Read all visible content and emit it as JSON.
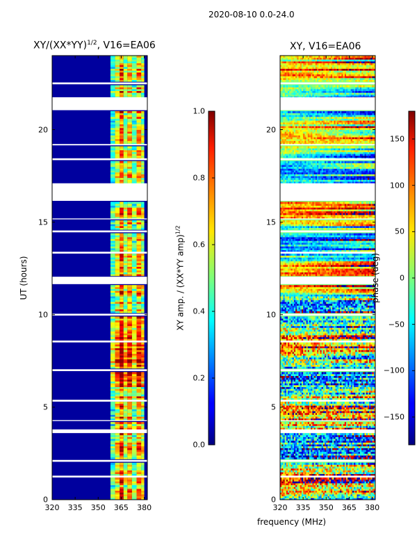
{
  "chart_data": {
    "type": "heatmap",
    "suptitle": "2020-08-10 0.0-24.0",
    "xlabel": "frequency (MHz)",
    "panels": [
      {
        "title": "XY/(XX*YY)",
        "title_sup": "1/2",
        "title_suffix": ", V16=EA06",
        "ylabel": "UT (hours)",
        "xlim": [
          320,
          382
        ],
        "ylim": [
          0,
          24
        ],
        "xticks": [
          "320",
          "335",
          "350",
          "365",
          "380"
        ],
        "xtick_values": [
          320,
          335,
          350,
          365,
          380
        ],
        "yticks": [
          "0",
          "5",
          "10",
          "15",
          "20"
        ],
        "ytick_values": [
          0,
          5,
          10,
          15,
          20
        ],
        "colormap": "jet",
        "colorbar": {
          "label": "XY amp. / (XX*YY amp)",
          "label_sup": "1/2",
          "range": [
            0.0,
            1.0
          ],
          "ticks": [
            "0.0",
            "0.2",
            "0.4",
            "0.6",
            "0.8",
            "1.0"
          ],
          "tick_values": [
            0.0,
            0.2,
            0.4,
            0.6,
            0.8,
            1.0
          ]
        }
      },
      {
        "title": "XY, V16=EA06",
        "xlim": [
          320,
          382
        ],
        "ylim": [
          0,
          24
        ],
        "xticks": [
          "320",
          "335",
          "350",
          "365",
          "380"
        ],
        "xtick_values": [
          320,
          335,
          350,
          365,
          380
        ],
        "yticks": [
          "0",
          "5",
          "10",
          "15",
          "20"
        ],
        "ytick_values": [
          0,
          5,
          10,
          15,
          20
        ],
        "colormap": "jet",
        "colorbar": {
          "label": "phase (deg)",
          "range": [
            -180,
            180
          ],
          "ticks": [
            "−150",
            "−100",
            "−50",
            "0",
            "50",
            "100",
            "150"
          ],
          "tick_values": [
            -150,
            -100,
            -50,
            0,
            50,
            100,
            150
          ]
        }
      }
    ],
    "data_gaps_ut_hours": [
      [
        21.05,
        21.75
      ],
      [
        16.15,
        17.1
      ],
      [
        11.65,
        12.05
      ],
      [
        3.6,
        3.8
      ],
      [
        5.3,
        5.4
      ],
      [
        6.95,
        7.05
      ],
      [
        8.5,
        8.6
      ],
      [
        9.95,
        10.05
      ],
      [
        13.3,
        13.4
      ],
      [
        14.45,
        14.55
      ],
      [
        18.35,
        18.45
      ],
      [
        22.45,
        22.55
      ],
      [
        1.2,
        1.3
      ],
      [
        2.05,
        2.15
      ],
      [
        4.25,
        4.3
      ],
      [
        15.15,
        15.2
      ],
      [
        19.15,
        19.22
      ]
    ],
    "amp_channel_bands_mhz": [
      {
        "from": 358,
        "to": 361,
        "amp": 0.45
      },
      {
        "from": 361,
        "to": 364,
        "amp": 0.62
      },
      {
        "from": 364,
        "to": 366.5,
        "amp": 0.8
      },
      {
        "from": 366.5,
        "to": 369,
        "amp": 0.55
      },
      {
        "from": 369,
        "to": 372,
        "amp": 0.7
      },
      {
        "from": 372,
        "to": 375,
        "amp": 0.5
      },
      {
        "from": 375,
        "to": 378,
        "amp": 0.72
      },
      {
        "from": 378,
        "to": 380,
        "amp": 0.58
      }
    ]
  }
}
